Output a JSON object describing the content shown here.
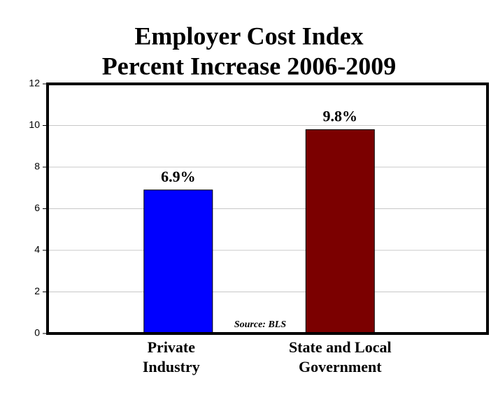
{
  "chart_data": {
    "type": "bar",
    "title": "Employer Cost Index",
    "subtitle": "Percent Increase 2006-2009",
    "categories": [
      "Private Industry",
      "State and Local Government"
    ],
    "values": [
      6.9,
      9.8
    ],
    "value_labels": [
      "6.9%",
      "9.8%"
    ],
    "colors": [
      "#0000ff",
      "#7b0000"
    ],
    "ylim": [
      0,
      12
    ],
    "yticks": [
      0,
      2,
      4,
      6,
      8,
      10,
      12
    ],
    "grid": true,
    "annotation": "Source: BLS"
  }
}
